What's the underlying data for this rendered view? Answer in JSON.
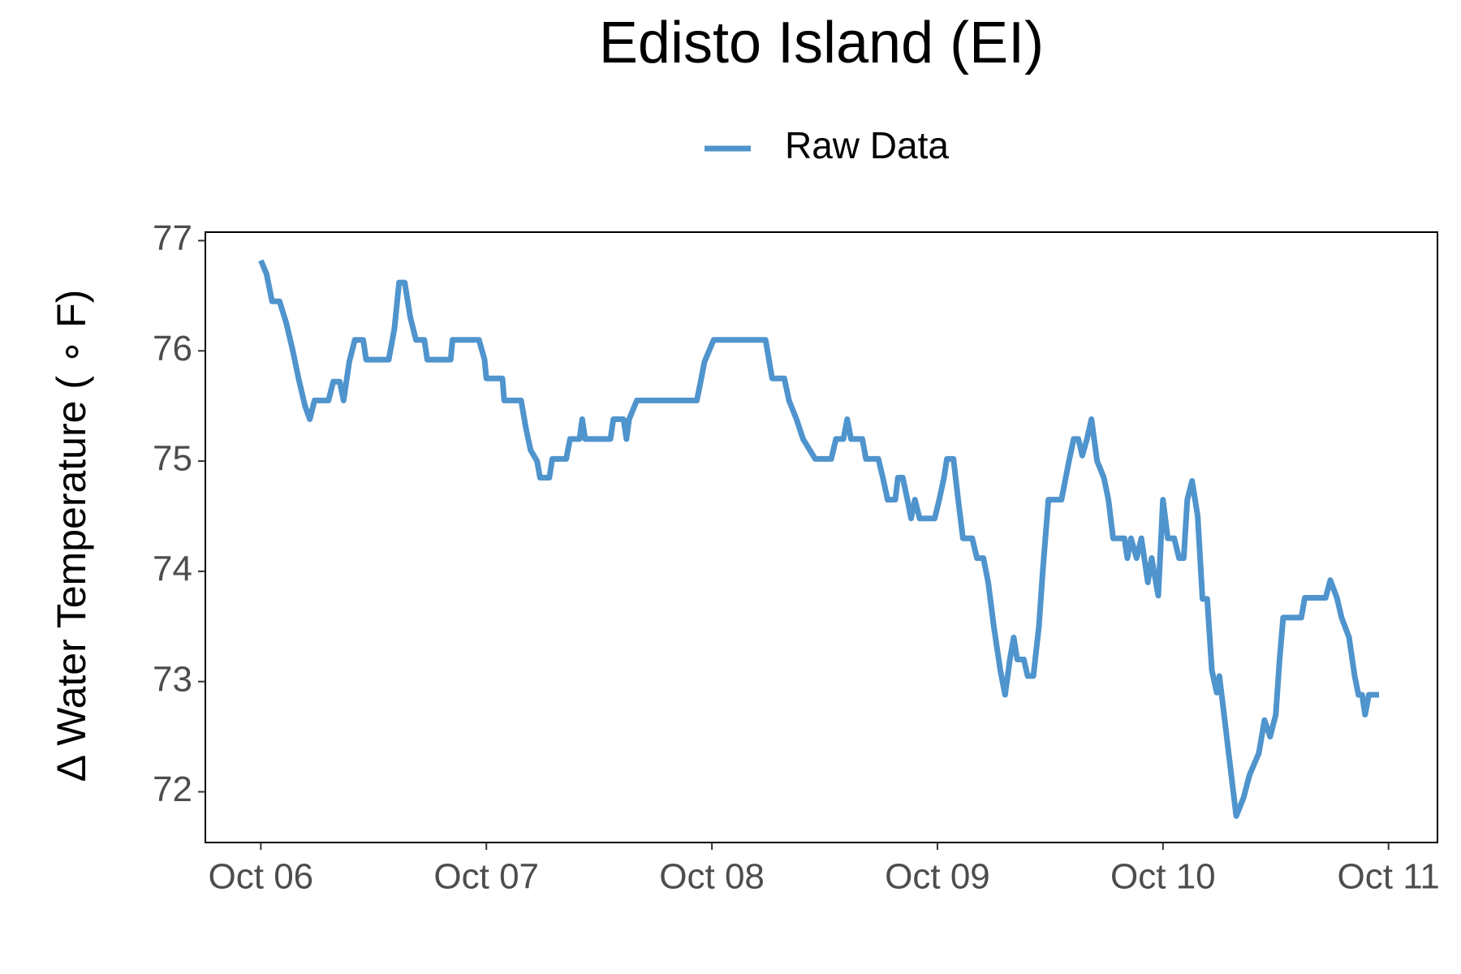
{
  "chart_data": {
    "type": "line",
    "title": "Edisto Island (EI)",
    "ylabel": "Δ Water Temperature ( ∘ F)",
    "x": [
      6.0,
      6.025,
      6.05,
      6.083,
      6.113,
      6.142,
      6.167,
      6.196,
      6.217,
      6.238,
      6.3,
      6.321,
      6.35,
      6.367,
      6.392,
      6.417,
      6.454,
      6.467,
      6.567,
      6.592,
      6.613,
      6.638,
      6.663,
      6.688,
      6.725,
      6.738,
      6.842,
      6.85,
      6.967,
      6.992,
      7.0,
      7.071,
      7.079,
      7.154,
      7.175,
      7.196,
      7.225,
      7.238,
      7.279,
      7.292,
      7.354,
      7.371,
      7.413,
      7.425,
      7.438,
      7.55,
      7.563,
      7.608,
      7.621,
      7.633,
      7.667,
      7.933,
      7.95,
      7.967,
      8.008,
      8.238,
      8.267,
      8.321,
      8.342,
      8.375,
      8.404,
      8.458,
      8.529,
      8.55,
      8.583,
      8.6,
      8.617,
      8.667,
      8.683,
      8.738,
      8.758,
      8.779,
      8.813,
      8.825,
      8.846,
      8.867,
      8.883,
      8.9,
      8.921,
      8.946,
      8.988,
      9.008,
      9.029,
      9.042,
      9.071,
      9.092,
      9.113,
      9.154,
      9.175,
      9.204,
      9.225,
      9.25,
      9.279,
      9.3,
      9.321,
      9.338,
      9.354,
      9.383,
      9.4,
      9.425,
      9.45,
      9.467,
      9.492,
      9.55,
      9.583,
      9.604,
      9.625,
      9.642,
      9.663,
      9.683,
      9.708,
      9.738,
      9.758,
      9.779,
      9.829,
      9.842,
      9.858,
      9.883,
      9.904,
      9.933,
      9.95,
      9.979,
      10.0,
      10.021,
      10.05,
      10.071,
      10.092,
      10.108,
      10.129,
      10.154,
      10.175,
      10.196,
      10.217,
      10.238,
      10.25,
      10.271,
      10.3,
      10.325,
      10.358,
      10.383,
      10.425,
      10.45,
      10.475,
      10.5,
      10.517,
      10.533,
      10.613,
      10.629,
      10.721,
      10.742,
      10.771,
      10.792,
      10.825,
      10.85,
      10.867,
      10.883,
      10.896,
      10.913,
      10.958
    ],
    "series": [
      {
        "name": "Raw Data",
        "color": "#4f94cd",
        "values": [
          76.82,
          76.7,
          76.45,
          76.45,
          76.25,
          76.0,
          75.75,
          75.5,
          75.38,
          75.55,
          75.55,
          75.72,
          75.72,
          75.55,
          75.9,
          76.1,
          76.1,
          75.92,
          75.92,
          76.2,
          76.62,
          76.62,
          76.3,
          76.1,
          76.1,
          75.92,
          75.92,
          76.1,
          76.1,
          75.92,
          75.75,
          75.75,
          75.55,
          75.55,
          75.3,
          75.1,
          75.0,
          74.85,
          74.85,
          75.02,
          75.02,
          75.2,
          75.2,
          75.38,
          75.2,
          75.2,
          75.38,
          75.38,
          75.2,
          75.38,
          75.55,
          75.55,
          75.72,
          75.9,
          76.1,
          76.1,
          75.75,
          75.75,
          75.55,
          75.38,
          75.2,
          75.02,
          75.02,
          75.2,
          75.2,
          75.38,
          75.2,
          75.2,
          75.02,
          75.02,
          74.85,
          74.65,
          74.65,
          74.85,
          74.85,
          74.65,
          74.48,
          74.65,
          74.48,
          74.48,
          74.48,
          74.65,
          74.85,
          75.02,
          75.02,
          74.65,
          74.3,
          74.3,
          74.12,
          74.12,
          73.9,
          73.5,
          73.1,
          72.88,
          73.2,
          73.4,
          73.2,
          73.2,
          73.05,
          73.05,
          73.5,
          74.0,
          74.65,
          74.65,
          75.0,
          75.2,
          75.2,
          75.05,
          75.2,
          75.38,
          75.0,
          74.85,
          74.65,
          74.3,
          74.3,
          74.12,
          74.3,
          74.12,
          74.3,
          73.9,
          74.12,
          73.78,
          74.65,
          74.3,
          74.3,
          74.12,
          74.12,
          74.65,
          74.82,
          74.5,
          73.75,
          73.75,
          73.1,
          72.9,
          73.05,
          72.7,
          72.2,
          71.78,
          71.95,
          72.15,
          72.35,
          72.65,
          72.5,
          72.7,
          73.2,
          73.58,
          73.58,
          73.76,
          73.76,
          73.92,
          73.76,
          73.58,
          73.4,
          73.05,
          72.88,
          72.88,
          72.7,
          72.88,
          72.88
        ]
      }
    ],
    "xlim": [
      5.754,
      11.217
    ],
    "ylim": [
      71.54,
      77.077
    ],
    "xticks": [
      {
        "value": 6,
        "label": "Oct 06"
      },
      {
        "value": 7,
        "label": "Oct 07"
      },
      {
        "value": 8,
        "label": "Oct 08"
      },
      {
        "value": 9,
        "label": "Oct 09"
      },
      {
        "value": 10,
        "label": "Oct 10"
      },
      {
        "value": 11,
        "label": "Oct 11"
      }
    ],
    "yticks": [
      72,
      73,
      74,
      75,
      76,
      77
    ],
    "grid": false,
    "legend": "top"
  }
}
